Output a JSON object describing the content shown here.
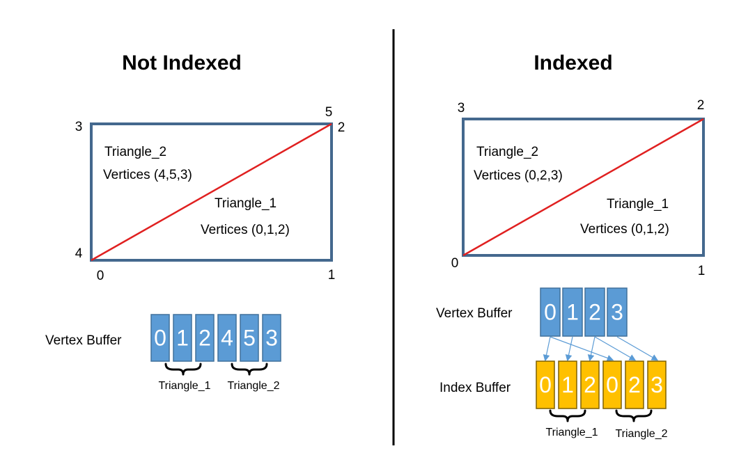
{
  "left": {
    "title": "Not Indexed",
    "corner_labels": {
      "top_left": "3",
      "top_right_upper": "5",
      "top_right_lower": "2",
      "bottom_left_upper": "4",
      "bottom_left_lower": "0",
      "bottom_right": "1"
    },
    "triangle_2": {
      "name": "Triangle_2",
      "vertices": "Vertices (4,5,3)"
    },
    "triangle_1": {
      "name": "Triangle_1",
      "vertices": "Vertices (0,1,2)"
    },
    "vertex_buffer": {
      "label": "Vertex Buffer",
      "cells": [
        "0",
        "1",
        "2",
        "4",
        "5",
        "3"
      ],
      "groups": [
        "Triangle_1",
        "Triangle_2"
      ]
    }
  },
  "right": {
    "title": "Indexed",
    "corner_labels": {
      "top_left": "3",
      "top_right": "2",
      "bottom_left": "0",
      "bottom_right": "1"
    },
    "triangle_2": {
      "name": "Triangle_2",
      "vertices": "Vertices (0,2,3)"
    },
    "triangle_1": {
      "name": "Triangle_1",
      "vertices": "Vertices (0,1,2)"
    },
    "vertex_buffer": {
      "label": "Vertex Buffer",
      "cells": [
        "0",
        "1",
        "2",
        "3"
      ]
    },
    "index_buffer": {
      "label": "Index Buffer",
      "cells": [
        "0",
        "1",
        "2",
        "0",
        "2",
        "3"
      ],
      "groups": [
        "Triangle_1",
        "Triangle_2"
      ]
    }
  },
  "colors": {
    "vertex_cell": "#5b9bd5",
    "index_cell": "#ffc000",
    "rectangle": "#44688e",
    "diagonal": "#e02020"
  }
}
